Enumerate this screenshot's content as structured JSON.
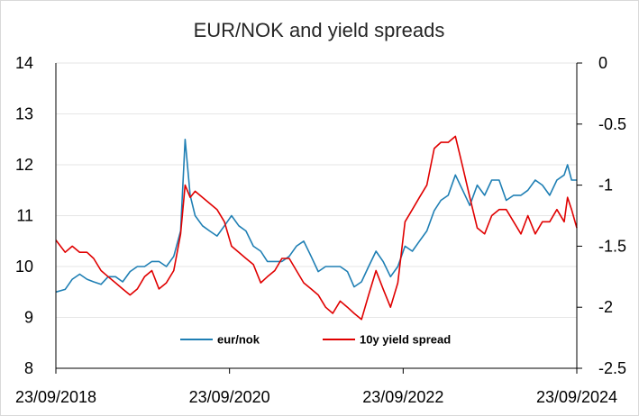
{
  "chart_data": {
    "type": "line",
    "title": "EUR/NOK and yield spreads",
    "xlabel": "",
    "ylabel": "",
    "x_tick_labels": [
      "23/09/2018",
      "23/09/2020",
      "23/09/2022",
      "23/09/2024"
    ],
    "x_range": [
      "2018-09-23",
      "2024-09-23"
    ],
    "y_left": {
      "lim": [
        8,
        14
      ],
      "ticks": [
        "8",
        "9",
        "10",
        "11",
        "12",
        "13",
        "14"
      ]
    },
    "y_right": {
      "lim": [
        -2.5,
        0
      ],
      "ticks": [
        "-2.5",
        "-2",
        "-1.5",
        "-1",
        "-0.5",
        "0"
      ]
    },
    "legend_position": "bottom-inside",
    "grid": "horizontal",
    "series": [
      {
        "name": "eur/nok",
        "axis": "left",
        "color": "#1f7fb4",
        "points": [
          [
            "2018-09-23",
            9.5
          ],
          [
            "2018-11-01",
            9.55
          ],
          [
            "2018-12-01",
            9.75
          ],
          [
            "2019-01-01",
            9.85
          ],
          [
            "2019-02-01",
            9.75
          ],
          [
            "2019-03-01",
            9.7
          ],
          [
            "2019-04-01",
            9.65
          ],
          [
            "2019-05-01",
            9.8
          ],
          [
            "2019-06-01",
            9.8
          ],
          [
            "2019-07-01",
            9.7
          ],
          [
            "2019-08-01",
            9.9
          ],
          [
            "2019-09-01",
            10.0
          ],
          [
            "2019-10-01",
            10.0
          ],
          [
            "2019-11-01",
            10.1
          ],
          [
            "2019-12-01",
            10.1
          ],
          [
            "2020-01-01",
            10.0
          ],
          [
            "2020-02-01",
            10.2
          ],
          [
            "2020-03-01",
            10.7
          ],
          [
            "2020-03-20",
            12.5
          ],
          [
            "2020-04-10",
            11.4
          ],
          [
            "2020-05-01",
            11.0
          ],
          [
            "2020-06-01",
            10.8
          ],
          [
            "2020-07-01",
            10.7
          ],
          [
            "2020-08-01",
            10.6
          ],
          [
            "2020-09-01",
            10.8
          ],
          [
            "2020-10-01",
            11.0
          ],
          [
            "2020-11-01",
            10.8
          ],
          [
            "2020-12-01",
            10.7
          ],
          [
            "2021-01-01",
            10.4
          ],
          [
            "2021-02-01",
            10.3
          ],
          [
            "2021-03-01",
            10.1
          ],
          [
            "2021-04-01",
            10.1
          ],
          [
            "2021-05-01",
            10.1
          ],
          [
            "2021-06-01",
            10.2
          ],
          [
            "2021-07-01",
            10.4
          ],
          [
            "2021-08-01",
            10.5
          ],
          [
            "2021-09-01",
            10.2
          ],
          [
            "2021-10-01",
            9.9
          ],
          [
            "2021-11-01",
            10.0
          ],
          [
            "2021-12-01",
            10.0
          ],
          [
            "2022-01-01",
            10.0
          ],
          [
            "2022-02-01",
            9.9
          ],
          [
            "2022-03-01",
            9.6
          ],
          [
            "2022-04-01",
            9.7
          ],
          [
            "2022-05-01",
            10.0
          ],
          [
            "2022-06-01",
            10.3
          ],
          [
            "2022-07-01",
            10.1
          ],
          [
            "2022-08-01",
            9.8
          ],
          [
            "2022-09-01",
            10.0
          ],
          [
            "2022-10-01",
            10.4
          ],
          [
            "2022-11-01",
            10.3
          ],
          [
            "2022-12-01",
            10.5
          ],
          [
            "2023-01-01",
            10.7
          ],
          [
            "2023-02-01",
            11.1
          ],
          [
            "2023-03-01",
            11.3
          ],
          [
            "2023-04-01",
            11.4
          ],
          [
            "2023-05-01",
            11.8
          ],
          [
            "2023-06-01",
            11.5
          ],
          [
            "2023-07-01",
            11.2
          ],
          [
            "2023-08-01",
            11.6
          ],
          [
            "2023-09-01",
            11.4
          ],
          [
            "2023-10-01",
            11.7
          ],
          [
            "2023-11-01",
            11.7
          ],
          [
            "2023-12-01",
            11.3
          ],
          [
            "2024-01-01",
            11.4
          ],
          [
            "2024-02-01",
            11.4
          ],
          [
            "2024-03-01",
            11.5
          ],
          [
            "2024-04-01",
            11.7
          ],
          [
            "2024-05-01",
            11.6
          ],
          [
            "2024-06-01",
            11.4
          ],
          [
            "2024-07-01",
            11.7
          ],
          [
            "2024-08-01",
            11.8
          ],
          [
            "2024-08-15",
            12.0
          ],
          [
            "2024-09-01",
            11.7
          ],
          [
            "2024-09-23",
            11.7
          ]
        ]
      },
      {
        "name": "10y yield spread",
        "axis": "right",
        "color": "#e00000",
        "points": [
          [
            "2018-09-23",
            -1.45
          ],
          [
            "2018-11-01",
            -1.55
          ],
          [
            "2018-12-01",
            -1.5
          ],
          [
            "2019-01-01",
            -1.55
          ],
          [
            "2019-02-01",
            -1.55
          ],
          [
            "2019-03-01",
            -1.6
          ],
          [
            "2019-04-01",
            -1.7
          ],
          [
            "2019-05-01",
            -1.75
          ],
          [
            "2019-06-01",
            -1.8
          ],
          [
            "2019-07-01",
            -1.85
          ],
          [
            "2019-08-01",
            -1.9
          ],
          [
            "2019-09-01",
            -1.85
          ],
          [
            "2019-10-01",
            -1.75
          ],
          [
            "2019-11-01",
            -1.7
          ],
          [
            "2019-12-01",
            -1.85
          ],
          [
            "2020-01-01",
            -1.8
          ],
          [
            "2020-02-01",
            -1.7
          ],
          [
            "2020-03-01",
            -1.4
          ],
          [
            "2020-03-20",
            -1.0
          ],
          [
            "2020-04-10",
            -1.1
          ],
          [
            "2020-05-01",
            -1.05
          ],
          [
            "2020-06-01",
            -1.1
          ],
          [
            "2020-07-01",
            -1.15
          ],
          [
            "2020-08-01",
            -1.2
          ],
          [
            "2020-09-01",
            -1.3
          ],
          [
            "2020-10-01",
            -1.5
          ],
          [
            "2020-11-01",
            -1.55
          ],
          [
            "2020-12-01",
            -1.6
          ],
          [
            "2021-01-01",
            -1.65
          ],
          [
            "2021-02-01",
            -1.8
          ],
          [
            "2021-03-01",
            -1.75
          ],
          [
            "2021-04-01",
            -1.7
          ],
          [
            "2021-05-01",
            -1.6
          ],
          [
            "2021-06-01",
            -1.6
          ],
          [
            "2021-07-01",
            -1.7
          ],
          [
            "2021-08-01",
            -1.8
          ],
          [
            "2021-09-01",
            -1.85
          ],
          [
            "2021-10-01",
            -1.9
          ],
          [
            "2021-11-01",
            -2.0
          ],
          [
            "2021-12-01",
            -2.05
          ],
          [
            "2022-01-01",
            -1.95
          ],
          [
            "2022-02-01",
            -2.0
          ],
          [
            "2022-03-01",
            -2.05
          ],
          [
            "2022-04-01",
            -2.1
          ],
          [
            "2022-05-01",
            -1.9
          ],
          [
            "2022-06-01",
            -1.7
          ],
          [
            "2022-07-01",
            -1.85
          ],
          [
            "2022-08-01",
            -2.0
          ],
          [
            "2022-09-01",
            -1.8
          ],
          [
            "2022-10-01",
            -1.3
          ],
          [
            "2022-11-01",
            -1.2
          ],
          [
            "2022-12-01",
            -1.1
          ],
          [
            "2023-01-01",
            -1.0
          ],
          [
            "2023-02-01",
            -0.7
          ],
          [
            "2023-03-01",
            -0.65
          ],
          [
            "2023-04-01",
            -0.65
          ],
          [
            "2023-05-01",
            -0.6
          ],
          [
            "2023-06-01",
            -0.85
          ],
          [
            "2023-07-01",
            -1.1
          ],
          [
            "2023-08-01",
            -1.35
          ],
          [
            "2023-09-01",
            -1.4
          ],
          [
            "2023-10-01",
            -1.25
          ],
          [
            "2023-11-01",
            -1.2
          ],
          [
            "2023-12-01",
            -1.2
          ],
          [
            "2024-01-01",
            -1.3
          ],
          [
            "2024-02-01",
            -1.4
          ],
          [
            "2024-03-01",
            -1.25
          ],
          [
            "2024-04-01",
            -1.4
          ],
          [
            "2024-05-01",
            -1.3
          ],
          [
            "2024-06-01",
            -1.3
          ],
          [
            "2024-07-01",
            -1.2
          ],
          [
            "2024-08-01",
            -1.3
          ],
          [
            "2024-08-15",
            -1.1
          ],
          [
            "2024-09-01",
            -1.2
          ],
          [
            "2024-09-23",
            -1.35
          ]
        ]
      }
    ]
  }
}
